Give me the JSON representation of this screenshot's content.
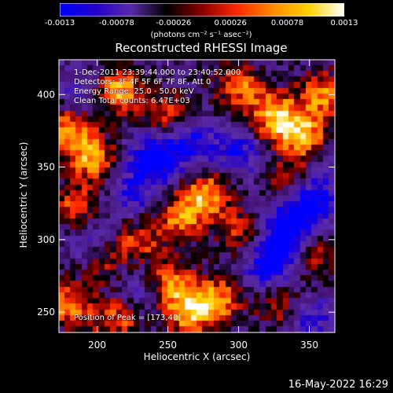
{
  "colorbar": {
    "ticks": [
      "-0.0013",
      "-0.00078",
      "-0.00026",
      "0.00026",
      "0.00078",
      "0.0013"
    ],
    "tick_values": [
      -0.0013,
      -0.00078,
      -0.00026,
      0.00026,
      0.00078,
      0.0013
    ],
    "unit_label": "(photons cm⁻² s⁻¹ asec⁻²)",
    "colors": [
      "#0000ff",
      "#2200cc",
      "#5a2aa8",
      "#000000",
      "#8a0000",
      "#ff2a00",
      "#ff8a00",
      "#ffd200",
      "#ffffff"
    ]
  },
  "chart_data": {
    "type": "heatmap",
    "title": "Reconstructed RHESSI Image",
    "xlabel": "Heliocentric X (arcsec)",
    "ylabel": "Heliocentric Y (arcsec)",
    "xlim": [
      173,
      368
    ],
    "ylim": [
      236,
      424
    ],
    "xticks": [
      "200",
      "250",
      "300",
      "350"
    ],
    "xtick_values": [
      200,
      250,
      300,
      350
    ],
    "yticks": [
      "250",
      "300",
      "350",
      "400"
    ],
    "ytick_values": [
      250,
      300,
      350,
      400
    ],
    "grid": false,
    "hotspots": [
      {
        "x": 215,
        "y": 402,
        "v": 1.0
      },
      {
        "x": 180,
        "y": 375,
        "v": 0.9
      },
      {
        "x": 197,
        "y": 355,
        "v": 0.85
      },
      {
        "x": 325,
        "y": 385,
        "v": 0.95
      },
      {
        "x": 345,
        "y": 372,
        "v": 0.95
      },
      {
        "x": 360,
        "y": 400,
        "v": 0.8
      },
      {
        "x": 300,
        "y": 405,
        "v": 0.75
      },
      {
        "x": 250,
        "y": 385,
        "v": 0.6
      },
      {
        "x": 278,
        "y": 332,
        "v": 0.85
      },
      {
        "x": 260,
        "y": 315,
        "v": 0.8
      },
      {
        "x": 300,
        "y": 305,
        "v": 0.55
      },
      {
        "x": 230,
        "y": 300,
        "v": 0.6
      },
      {
        "x": 185,
        "y": 320,
        "v": 0.7
      },
      {
        "x": 205,
        "y": 285,
        "v": 0.5
      },
      {
        "x": 250,
        "y": 270,
        "v": 0.75
      },
      {
        "x": 265,
        "y": 250,
        "v": 0.9
      },
      {
        "x": 285,
        "y": 258,
        "v": 0.85
      },
      {
        "x": 180,
        "y": 255,
        "v": 0.8
      },
      {
        "x": 215,
        "y": 245,
        "v": 0.7
      },
      {
        "x": 330,
        "y": 255,
        "v": 0.6
      },
      {
        "x": 355,
        "y": 290,
        "v": 0.5
      },
      {
        "x": 335,
        "y": 340,
        "v": 0.55
      }
    ],
    "coldspots": [
      {
        "x": 240,
        "y": 355,
        "v": -0.9
      },
      {
        "x": 265,
        "y": 365,
        "v": -0.7
      },
      {
        "x": 300,
        "y": 360,
        "v": -0.6
      },
      {
        "x": 340,
        "y": 315,
        "v": -0.8
      },
      {
        "x": 355,
        "y": 330,
        "v": -0.7
      },
      {
        "x": 225,
        "y": 330,
        "v": -0.5
      },
      {
        "x": 195,
        "y": 300,
        "v": -0.5
      },
      {
        "x": 320,
        "y": 280,
        "v": -0.6
      },
      {
        "x": 330,
        "y": 295,
        "v": -0.7
      },
      {
        "x": 230,
        "y": 265,
        "v": -0.4
      },
      {
        "x": 350,
        "y": 245,
        "v": -0.5
      },
      {
        "x": 190,
        "y": 400,
        "v": -0.4
      }
    ]
  },
  "annotations": {
    "time": "1-Dec-2011 23:39:44.000 to 23:40:52.000",
    "detectors": "Detectors: 3F 4F 5F 6F 7F 8F, Att 0",
    "energy": "Energy Range: 25.0 - 50.0 keV",
    "clean": "Clean     Total counts: 6.47E+03",
    "peak": "Position of Peak = [173,40]"
  },
  "timestamp": "16-May-2022 16:29"
}
